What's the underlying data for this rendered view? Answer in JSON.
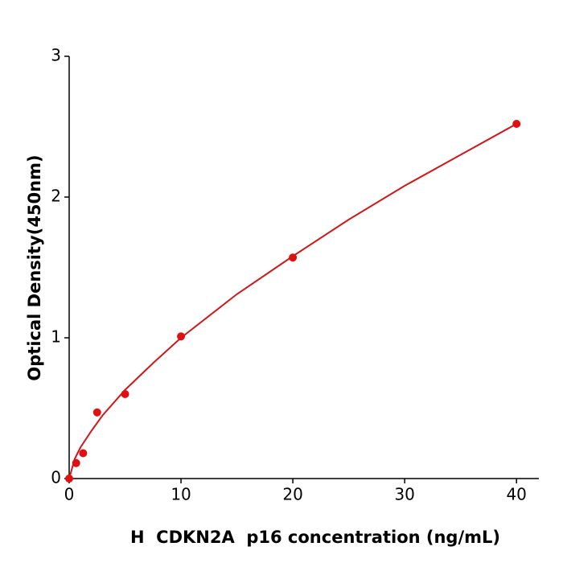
{
  "chart_data": {
    "type": "scatter",
    "xlabel": "H  CDKN2A  p16 concentration (ng/mL)",
    "ylabel": "Optical Density(450nm)",
    "x": [
      0,
      0.625,
      1.25,
      2.5,
      5,
      10,
      20,
      40
    ],
    "values": [
      0.0,
      0.11,
      0.18,
      0.47,
      0.6,
      1.01,
      1.57,
      2.52
    ],
    "color": "#e01010",
    "fit": {
      "x": [
        0,
        0.5,
        1,
        2,
        3,
        5,
        7.5,
        10,
        15,
        20,
        25,
        30,
        35,
        40
      ],
      "values": [
        0,
        0.14,
        0.22,
        0.34,
        0.45,
        0.63,
        0.82,
        1.0,
        1.31,
        1.58,
        1.84,
        2.08,
        2.3,
        2.52
      ],
      "color": "#d01818"
    },
    "xlim": [
      0,
      42
    ],
    "xticks": [
      0,
      10,
      20,
      30,
      40
    ],
    "ylim": [
      0,
      3
    ],
    "yticks": [
      0,
      1,
      2,
      3
    ]
  }
}
